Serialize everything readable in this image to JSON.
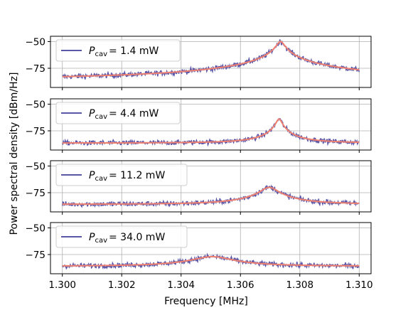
{
  "chart_data": {
    "type": "line",
    "xlabel": "Frequency [MHz]",
    "ylabel": "Power spectral density [dBm/Hz]",
    "xlim": [
      1.2996,
      1.3104
    ],
    "x_ticks": [
      "1.300",
      "1.302",
      "1.304",
      "1.306",
      "1.308",
      "1.310"
    ],
    "x_tick_values": [
      1.3,
      1.302,
      1.304,
      1.306,
      1.308,
      1.31
    ],
    "y_ticks": [
      "−50",
      "−75"
    ],
    "y_tick_values": [
      -50,
      -75
    ],
    "grid": true,
    "legend_location": "upper-left",
    "colors": {
      "data": "#5a57a8",
      "fit": "#f08070"
    },
    "panels": [
      {
        "legend": {
          "symbol": "P",
          "subscript": "cav",
          "value": "= 1.4 mW"
        },
        "ylim": [
          -93,
          -45
        ],
        "baseline": -86,
        "peak_x": 1.30735,
        "peak_y": -50,
        "halfwidth": 0.00012,
        "noise": 1.7
      },
      {
        "legend": {
          "symbol": "P",
          "subscript": "cav",
          "value": "= 4.4 mW"
        },
        "ylim": [
          -93,
          -45
        ],
        "baseline": -86.5,
        "peak_x": 1.3073,
        "peak_y": -64,
        "halfwidth": 9e-05,
        "noise": 1.6
      },
      {
        "legend": {
          "symbol": "P",
          "subscript": "cav",
          "value": "= 11.2 mW"
        },
        "ylim": [
          -93,
          -45
        ],
        "baseline": -86,
        "peak_x": 1.30697,
        "peak_y": -70,
        "halfwidth": 0.00025,
        "noise": 1.7
      },
      {
        "legend": {
          "symbol": "P",
          "subscript": "cav",
          "value": "= 34.0 mW"
        },
        "ylim": [
          -93,
          -45
        ],
        "baseline": -86,
        "peak_x": 1.30505,
        "peak_y": -77,
        "halfwidth": 0.0006,
        "noise": 1.6
      }
    ]
  }
}
